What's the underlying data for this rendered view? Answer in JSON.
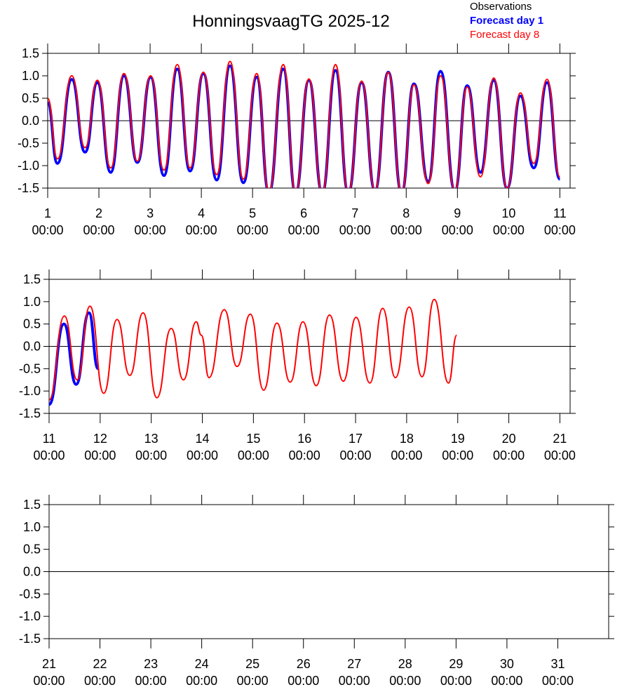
{
  "chart_data": [
    {
      "type": "line",
      "title": "HonningsvaagTG 2025-12",
      "xlim": [
        1,
        11.2
      ],
      "xticks": [
        {
          "value": 1,
          "label": "1\n00:00"
        },
        {
          "value": 2,
          "label": "2\n00:00"
        },
        {
          "value": 3,
          "label": "3\n00:00"
        },
        {
          "value": 4,
          "label": "4\n00:00"
        },
        {
          "value": 5,
          "label": "5\n00:00"
        },
        {
          "value": 6,
          "label": "6\n00:00"
        },
        {
          "value": 7,
          "label": "7\n00:00"
        },
        {
          "value": 8,
          "label": "8\n00:00"
        },
        {
          "value": 9,
          "label": "9\n00:00"
        },
        {
          "value": 10,
          "label": "10\n00:00"
        },
        {
          "value": 11,
          "label": "11\n00:00"
        }
      ],
      "ylim": [
        -1.5,
        1.5
      ],
      "yticks": [
        1.5,
        {
          "value": 1,
          "label": "1.0"
        },
        0.5,
        {
          "value": 0,
          "label": "0.0"
        },
        -0.5,
        {
          "value": -1,
          "label": "-1.0"
        },
        -1.5
      ],
      "series": [
        {
          "name": "Observations",
          "color": "#000000",
          "x": [],
          "values": []
        },
        {
          "name": "Forecast day 1",
          "color": "#0000ff",
          "x": [
            1.0,
            1.19,
            1.47,
            1.73,
            1.97,
            2.23,
            2.49,
            2.75,
            3.01,
            3.27,
            3.53,
            3.78,
            4.04,
            4.3,
            4.56,
            4.82,
            5.08,
            5.32,
            5.6,
            5.84,
            6.1,
            6.36,
            6.62,
            6.87,
            7.13,
            7.39,
            7.65,
            7.91,
            8.15,
            8.43,
            8.67,
            8.95,
            9.19,
            9.45,
            9.71,
            9.97,
            10.23,
            10.49,
            10.75,
            11.0
          ],
          "values": [
            0.4,
            -0.95,
            0.92,
            -0.7,
            0.85,
            -1.15,
            1.0,
            -0.93,
            0.97,
            -1.22,
            1.15,
            -1.12,
            1.05,
            -1.32,
            1.22,
            -1.38,
            0.97,
            -1.6,
            1.15,
            -1.6,
            0.9,
            -1.6,
            1.12,
            -1.6,
            0.85,
            -1.55,
            1.08,
            -1.6,
            0.82,
            -1.35,
            1.1,
            -1.55,
            0.78,
            -1.15,
            0.9,
            -1.5,
            0.55,
            -1.05,
            0.85,
            -1.3
          ]
        },
        {
          "name": "Forecast day 8",
          "color": "#ff0000",
          "x": [
            1.0,
            1.19,
            1.47,
            1.73,
            1.97,
            2.23,
            2.49,
            2.75,
            3.01,
            3.27,
            3.53,
            3.78,
            4.04,
            4.3,
            4.56,
            4.82,
            5.08,
            5.32,
            5.6,
            5.84,
            6.1,
            6.36,
            6.62,
            6.87,
            7.13,
            7.39,
            7.65,
            7.91,
            8.15,
            8.43,
            8.67,
            8.95,
            9.19,
            9.45,
            9.71,
            9.97,
            10.23,
            10.49,
            10.75,
            11.0
          ],
          "values": [
            0.5,
            -0.85,
            1.0,
            -0.6,
            0.9,
            -1.05,
            1.05,
            -0.9,
            1.0,
            -1.1,
            1.25,
            -1.05,
            1.08,
            -1.2,
            1.32,
            -1.3,
            1.05,
            -1.6,
            1.25,
            -1.6,
            0.93,
            -1.6,
            1.25,
            -1.6,
            0.88,
            -1.55,
            1.08,
            -1.6,
            0.8,
            -1.4,
            1.0,
            -1.55,
            0.75,
            -1.25,
            0.95,
            -1.5,
            0.62,
            -0.95,
            0.92,
            -1.25
          ]
        }
      ]
    },
    {
      "type": "line",
      "xlim": [
        11,
        21.2
      ],
      "xticks": [
        {
          "value": 11,
          "label": "11\n00:00"
        },
        {
          "value": 12,
          "label": "12\n00:00"
        },
        {
          "value": 13,
          "label": "13\n00:00"
        },
        {
          "value": 14,
          "label": "14\n00:00"
        },
        {
          "value": 15,
          "label": "15\n00:00"
        },
        {
          "value": 16,
          "label": "16\n00:00"
        },
        {
          "value": 17,
          "label": "17\n00:00"
        },
        {
          "value": 18,
          "label": "18\n00:00"
        },
        {
          "value": 19,
          "label": "19\n00:00"
        },
        {
          "value": 20,
          "label": "20\n00:00"
        },
        {
          "value": 21,
          "label": "21\n00:00"
        }
      ],
      "ylim": [
        -1.5,
        1.5
      ],
      "yticks": [
        1.5,
        {
          "value": 1,
          "label": "1.0"
        },
        0.5,
        {
          "value": 0,
          "label": "0.0"
        },
        -0.5,
        {
          "value": -1,
          "label": "-1.0"
        },
        -1.5
      ],
      "series": [
        {
          "color": "#0000ff",
          "x": [
            11.0,
            11.29,
            11.53,
            11.78,
            11.96
          ],
          "values": [
            -1.3,
            0.5,
            -0.85,
            0.75,
            -0.5
          ]
        },
        {
          "color": "#ff0000",
          "x": [
            11.0,
            11.3,
            11.55,
            11.8,
            12.07,
            12.33,
            12.58,
            12.84,
            13.11,
            13.39,
            13.63,
            13.88,
            13.98,
            14.13,
            14.43,
            14.68,
            14.94,
            15.2,
            15.46,
            15.72,
            15.97,
            16.23,
            16.49,
            16.76,
            17.01,
            17.28,
            17.53,
            17.78,
            18.05,
            18.3,
            18.54,
            18.82,
            18.98
          ],
          "values": [
            -1.2,
            0.68,
            -0.75,
            0.9,
            -1.05,
            0.6,
            -0.65,
            0.75,
            -1.15,
            0.4,
            -0.75,
            0.55,
            0.25,
            -0.7,
            0.82,
            -0.45,
            0.72,
            -0.98,
            0.52,
            -0.8,
            0.55,
            -0.88,
            0.7,
            -0.78,
            0.65,
            -0.82,
            0.85,
            -0.7,
            0.88,
            -0.68,
            1.05,
            -0.82,
            0.25
          ]
        }
      ]
    },
    {
      "type": "line",
      "xlim": [
        21,
        32
      ],
      "xticks": [
        {
          "value": 21,
          "label": "21\n00:00"
        },
        {
          "value": 22,
          "label": "22\n00:00"
        },
        {
          "value": 23,
          "label": "23\n00:00"
        },
        {
          "value": 24,
          "label": "24\n00:00"
        },
        {
          "value": 25,
          "label": "25\n00:00"
        },
        {
          "value": 26,
          "label": "26\n00:00"
        },
        {
          "value": 27,
          "label": "27\n00:00"
        },
        {
          "value": 28,
          "label": "28\n00:00"
        },
        {
          "value": 29,
          "label": "29\n00:00"
        },
        {
          "value": 30,
          "label": "30\n00:00"
        },
        {
          "value": 31,
          "label": "31\n00:00"
        }
      ],
      "ylim": [
        -1.5,
        1.5
      ],
      "yticks": [
        1.5,
        {
          "value": 1,
          "label": "1.0"
        },
        0.5,
        {
          "value": 0,
          "label": "0.0"
        },
        -0.5,
        {
          "value": -1,
          "label": "-1.0"
        },
        -1.5
      ]
    }
  ]
}
